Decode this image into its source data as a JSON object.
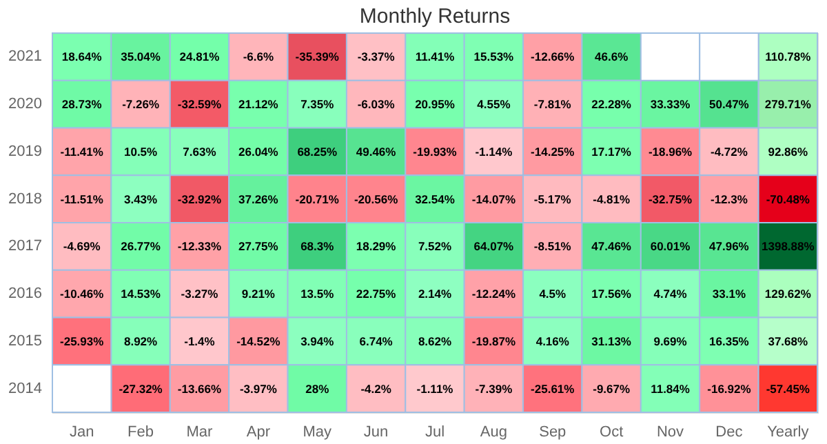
{
  "chart_data": {
    "type": "heatmap",
    "title": "Monthly Returns",
    "categories": [
      "Jan",
      "Feb",
      "Mar",
      "Apr",
      "May",
      "Jun",
      "Jul",
      "Aug",
      "Sep",
      "Oct",
      "Nov",
      "Dec",
      "Yearly"
    ],
    "y_categories": [
      "2021",
      "2020",
      "2019",
      "2018",
      "2017",
      "2016",
      "2015",
      "2014"
    ],
    "cells": [
      [
        18.64,
        35.04,
        24.81,
        -6.6,
        -35.39,
        -3.37,
        11.41,
        15.53,
        -12.66,
        46.6,
        null,
        null,
        110.78
      ],
      [
        28.73,
        -7.26,
        -32.59,
        21.12,
        7.35,
        -6.03,
        20.95,
        4.55,
        -7.81,
        22.28,
        33.33,
        50.47,
        279.71
      ],
      [
        -11.41,
        10.5,
        7.63,
        26.04,
        68.25,
        49.46,
        -19.93,
        -1.14,
        -14.25,
        17.17,
        -18.96,
        -4.72,
        92.86
      ],
      [
        -11.51,
        3.43,
        -32.92,
        37.26,
        -20.71,
        -20.56,
        32.54,
        -14.07,
        -5.17,
        -4.81,
        -32.75,
        -12.3,
        -70.48
      ],
      [
        -4.69,
        26.77,
        -12.33,
        27.75,
        68.3,
        18.29,
        7.52,
        64.07,
        -8.51,
        47.46,
        60.01,
        47.96,
        1398.88
      ],
      [
        -10.46,
        14.53,
        -3.27,
        9.21,
        13.5,
        22.75,
        2.14,
        -12.24,
        4.5,
        17.56,
        4.74,
        33.1,
        129.62
      ],
      [
        -25.93,
        8.92,
        -1.4,
        -14.52,
        3.94,
        6.74,
        8.62,
        -19.87,
        4.16,
        31.13,
        9.69,
        16.35,
        37.68
      ],
      [
        null,
        -27.32,
        -13.66,
        -3.97,
        28,
        -4.2,
        -1.11,
        -7.39,
        -25.61,
        -9.67,
        11.84,
        -16.92,
        -57.45
      ]
    ],
    "cell_labels": [
      [
        "18.64%",
        "35.04%",
        "24.81%",
        "-6.6%",
        "-35.39%",
        "-3.37%",
        "11.41%",
        "15.53%",
        "-12.66%",
        "46.6%",
        null,
        null,
        "110.78%"
      ],
      [
        "28.73%",
        "-7.26%",
        "-32.59%",
        "21.12%",
        "7.35%",
        "-6.03%",
        "20.95%",
        "4.55%",
        "-7.81%",
        "22.28%",
        "33.33%",
        "50.47%",
        "279.71%"
      ],
      [
        "-11.41%",
        "10.5%",
        "7.63%",
        "26.04%",
        "68.25%",
        "49.46%",
        "-19.93%",
        "-1.14%",
        "-14.25%",
        "17.17%",
        "-18.96%",
        "-4.72%",
        "92.86%"
      ],
      [
        "-11.51%",
        "3.43%",
        "-32.92%",
        "37.26%",
        "-20.71%",
        "-20.56%",
        "32.54%",
        "-14.07%",
        "-5.17%",
        "-4.81%",
        "-32.75%",
        "-12.3%",
        "-70.48%"
      ],
      [
        "-4.69%",
        "26.77%",
        "-12.33%",
        "27.75%",
        "68.3%",
        "18.29%",
        "7.52%",
        "64.07%",
        "-8.51%",
        "47.46%",
        "60.01%",
        "47.96%",
        "1398.88%"
      ],
      [
        "-10.46%",
        "14.53%",
        "-3.27%",
        "9.21%",
        "13.5%",
        "22.75%",
        "2.14%",
        "-12.24%",
        "4.5%",
        "17.56%",
        "4.74%",
        "33.1%",
        "129.62%"
      ],
      [
        "-25.93%",
        "8.92%",
        "-1.4%",
        "-14.52%",
        "3.94%",
        "6.74%",
        "8.62%",
        "-19.87%",
        "4.16%",
        "31.13%",
        "9.69%",
        "16.35%",
        "37.68%"
      ],
      [
        null,
        "-27.32%",
        "-13.66%",
        "-3.97%",
        "28%",
        "-4.2%",
        "-1.11%",
        "-7.39%",
        "-25.61%",
        "-9.67%",
        "11.84%",
        "-16.92%",
        "-57.45%"
      ]
    ]
  }
}
